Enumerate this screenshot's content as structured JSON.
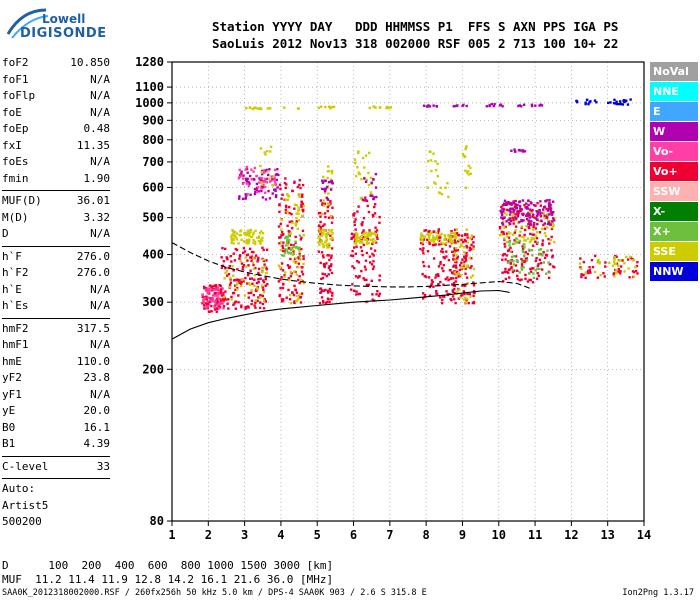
{
  "logo": {
    "line1": "Lowell",
    "line2": "DIGISONDE"
  },
  "header": {
    "line1": "Station YYYY DAY   DDD HHMMSS P1  FFS S AXN PPS IGA PS",
    "line2": "SaoLuis 2012 Nov13 318 002000 RSF 005 2 713 100 10+ 22"
  },
  "params": [
    [
      [
        "foF2",
        "10.850"
      ],
      [
        "foF1",
        "N/A"
      ],
      [
        "foFlp",
        "N/A"
      ],
      [
        "foE",
        "N/A"
      ],
      [
        "foEp",
        "0.48"
      ],
      [
        "fxI",
        "11.35"
      ],
      [
        "foEs",
        "N/A"
      ],
      [
        "fmin",
        "1.90"
      ]
    ],
    [
      [
        "MUF(D)",
        "36.01"
      ],
      [
        "M(D)",
        "3.32"
      ],
      [
        "D",
        "N/A"
      ]
    ],
    [
      [
        "h`F",
        "276.0"
      ],
      [
        "h`F2",
        "276.0"
      ],
      [
        "h`E",
        "N/A"
      ],
      [
        "h`Es",
        "N/A"
      ]
    ],
    [
      [
        "hmF2",
        "317.5"
      ],
      [
        "hmF1",
        "N/A"
      ],
      [
        "hmE",
        "110.0"
      ],
      [
        "yF2",
        "23.8"
      ],
      [
        "yF1",
        "N/A"
      ],
      [
        "yE",
        "20.0"
      ],
      [
        "B0",
        "16.1"
      ],
      [
        "B1",
        "4.39"
      ]
    ],
    [
      [
        "C-level",
        "33"
      ]
    ],
    [
      [
        "Auto:",
        ""
      ],
      [
        "Artist5",
        ""
      ],
      [
        "500200",
        ""
      ]
    ]
  ],
  "legend": [
    {
      "label": "NoVal",
      "color": "#a0a0a0"
    },
    {
      "label": "NNE",
      "color": "#00ffff"
    },
    {
      "label": "E",
      "color": "#3fa7ff"
    },
    {
      "label": "W",
      "color": "#b000b0"
    },
    {
      "label": "Vo-",
      "color": "#ff3fa7"
    },
    {
      "label": "Vo+",
      "color": "#ee0033"
    },
    {
      "label": "SSW",
      "color": "#ffb0b0"
    },
    {
      "label": "X-",
      "color": "#007f00"
    },
    {
      "label": "X+",
      "color": "#6fbf3f"
    },
    {
      "label": "SSE",
      "color": "#cccc00"
    },
    {
      "label": "NNW",
      "color": "#0000dd"
    }
  ],
  "footer": {
    "d_line": "D      100  200  400  600  800 1000 1500 3000 [km]",
    "muf_line": "MUF  11.2 11.4 11.9 12.8 14.2 16.1 21.6 36.0 [MHz]",
    "file_line": "SAA0K_2012318002000.RSF / 260fx256h 50 kHz 5.0 km / DPS-4 SAA0K 903 / 2.6 S 315.8 E",
    "version": "Ion2Png 1.3.17"
  },
  "chart_data": {
    "type": "scatter",
    "title": "",
    "xlabel": "",
    "ylabel": "",
    "xlim": [
      1,
      14
    ],
    "ylim": [
      80,
      1280
    ],
    "y_scale": "log",
    "x_ticks": [
      1,
      2,
      3,
      4,
      5,
      6,
      7,
      8,
      9,
      10,
      11,
      12,
      13,
      14
    ],
    "y_ticks": [
      80,
      200,
      300,
      400,
      500,
      600,
      700,
      800,
      900,
      1000,
      1100,
      1280
    ],
    "grid": "dotted",
    "legend_placement": "right",
    "trace_curve": {
      "x": [
        1.0,
        1.5,
        2.0,
        2.5,
        3.0,
        3.5,
        4.0,
        4.5,
        5.0,
        5.5,
        6.0,
        6.5,
        7.0,
        7.5,
        8.0,
        8.5,
        9.0,
        9.5,
        10.0,
        10.3
      ],
      "y": [
        240,
        255,
        265,
        272,
        278,
        284,
        288,
        291,
        294,
        297,
        300,
        302,
        304,
        307,
        310,
        313,
        317,
        321,
        322,
        318
      ]
    },
    "profile_curve": {
      "x": [
        1.0,
        1.5,
        2.0,
        2.5,
        3.0,
        3.5,
        4.0,
        4.5,
        5.0,
        5.5,
        6.0,
        6.5,
        7.0,
        7.5,
        8.0,
        8.5,
        9.0,
        9.5,
        10.0,
        10.5,
        10.9
      ],
      "y": [
        430,
        405,
        385,
        370,
        360,
        352,
        345,
        340,
        336,
        333,
        331,
        330,
        329,
        329,
        330,
        332,
        334,
        337,
        340,
        336,
        325
      ]
    },
    "echo_clusters": [
      {
        "x0": 1.8,
        "x1": 2.4,
        "y0": 285,
        "y1": 335,
        "color": "Vo+",
        "n": 90
      },
      {
        "x0": 1.8,
        "x1": 2.4,
        "y0": 290,
        "y1": 330,
        "color": "Vo-",
        "n": 50
      },
      {
        "x0": 2.3,
        "x1": 3.6,
        "y0": 290,
        "y1": 420,
        "color": "Vo+",
        "n": 160
      },
      {
        "x0": 2.3,
        "x1": 3.6,
        "y0": 300,
        "y1": 400,
        "color": "SSE",
        "n": 40
      },
      {
        "x0": 2.6,
        "x1": 3.5,
        "y0": 430,
        "y1": 470,
        "color": "SSE",
        "n": 70
      },
      {
        "x0": 2.8,
        "x1": 3.9,
        "y0": 560,
        "y1": 680,
        "color": "W",
        "n": 70
      },
      {
        "x0": 2.8,
        "x1": 3.9,
        "y0": 580,
        "y1": 690,
        "color": "Vo-",
        "n": 40
      },
      {
        "x0": 3.4,
        "x1": 3.9,
        "y0": 600,
        "y1": 780,
        "color": "SSE",
        "n": 15
      },
      {
        "x0": 3.9,
        "x1": 4.6,
        "y0": 300,
        "y1": 640,
        "color": "Vo+",
        "n": 140
      },
      {
        "x0": 3.9,
        "x1": 4.6,
        "y0": 300,
        "y1": 620,
        "color": "SSE",
        "n": 60
      },
      {
        "x0": 4.0,
        "x1": 4.5,
        "y0": 400,
        "y1": 460,
        "color": "X+",
        "n": 30
      },
      {
        "x0": 5.0,
        "x1": 5.4,
        "y0": 300,
        "y1": 560,
        "color": "Vo+",
        "n": 90
      },
      {
        "x0": 5.0,
        "x1": 5.4,
        "y0": 420,
        "y1": 470,
        "color": "SSE",
        "n": 45
      },
      {
        "x0": 5.1,
        "x1": 5.4,
        "y0": 500,
        "y1": 700,
        "color": "SSE",
        "n": 20
      },
      {
        "x0": 5.1,
        "x1": 5.4,
        "y0": 560,
        "y1": 640,
        "color": "W",
        "n": 20
      },
      {
        "x0": 5.9,
        "x1": 6.7,
        "y0": 300,
        "y1": 560,
        "color": "Vo+",
        "n": 110
      },
      {
        "x0": 6.0,
        "x1": 6.6,
        "y0": 430,
        "y1": 460,
        "color": "SSE",
        "n": 50
      },
      {
        "x0": 6.0,
        "x1": 6.5,
        "y0": 560,
        "y1": 760,
        "color": "SSE",
        "n": 25
      },
      {
        "x0": 6.2,
        "x1": 6.6,
        "y0": 560,
        "y1": 660,
        "color": "W",
        "n": 15
      },
      {
        "x0": 7.8,
        "x1": 8.8,
        "y0": 300,
        "y1": 470,
        "color": "Vo+",
        "n": 130
      },
      {
        "x0": 7.8,
        "x1": 8.8,
        "y0": 430,
        "y1": 460,
        "color": "SSE",
        "n": 60
      },
      {
        "x0": 8.0,
        "x1": 8.6,
        "y0": 550,
        "y1": 770,
        "color": "SSE",
        "n": 20
      },
      {
        "x0": 8.7,
        "x1": 9.3,
        "y0": 300,
        "y1": 460,
        "color": "Vo+",
        "n": 90
      },
      {
        "x0": 8.7,
        "x1": 9.3,
        "y0": 300,
        "y1": 470,
        "color": "SSE",
        "n": 40
      },
      {
        "x0": 8.9,
        "x1": 9.2,
        "y0": 600,
        "y1": 780,
        "color": "SSE",
        "n": 15
      },
      {
        "x0": 10.0,
        "x1": 11.5,
        "y0": 340,
        "y1": 560,
        "color": "Vo+",
        "n": 200
      },
      {
        "x0": 10.0,
        "x1": 11.5,
        "y0": 430,
        "y1": 520,
        "color": "SSE",
        "n": 70
      },
      {
        "x0": 10.0,
        "x1": 11.5,
        "y0": 480,
        "y1": 560,
        "color": "W",
        "n": 110
      },
      {
        "x0": 10.2,
        "x1": 11.4,
        "y0": 350,
        "y1": 450,
        "color": "X+",
        "n": 50
      },
      {
        "x0": 12.2,
        "x1": 13.8,
        "y0": 350,
        "y1": 400,
        "color": "Vo+",
        "n": 50
      },
      {
        "x0": 12.2,
        "x1": 13.8,
        "y0": 350,
        "y1": 400,
        "color": "SSE",
        "n": 30
      },
      {
        "x0": 3.0,
        "x1": 4.5,
        "y0": 970,
        "y1": 980,
        "color": "SSE",
        "n": 18
      },
      {
        "x0": 5.0,
        "x1": 5.5,
        "y0": 975,
        "y1": 985,
        "color": "SSE",
        "n": 10
      },
      {
        "x0": 6.4,
        "x1": 7.0,
        "y0": 975,
        "y1": 985,
        "color": "SSE",
        "n": 12
      },
      {
        "x0": 7.9,
        "x1": 8.3,
        "y0": 985,
        "y1": 995,
        "color": "W",
        "n": 8
      },
      {
        "x0": 8.7,
        "x1": 9.1,
        "y0": 985,
        "y1": 995,
        "color": "W",
        "n": 8
      },
      {
        "x0": 9.6,
        "x1": 10.1,
        "y0": 985,
        "y1": 1000,
        "color": "W",
        "n": 10
      },
      {
        "x0": 10.5,
        "x1": 11.2,
        "y0": 985,
        "y1": 1000,
        "color": "W",
        "n": 10
      },
      {
        "x0": 12.1,
        "x1": 13.6,
        "y0": 995,
        "y1": 1030,
        "color": "NNW",
        "n": 30
      },
      {
        "x0": 10.2,
        "x1": 10.7,
        "y0": 750,
        "y1": 760,
        "color": "W",
        "n": 10
      }
    ]
  }
}
